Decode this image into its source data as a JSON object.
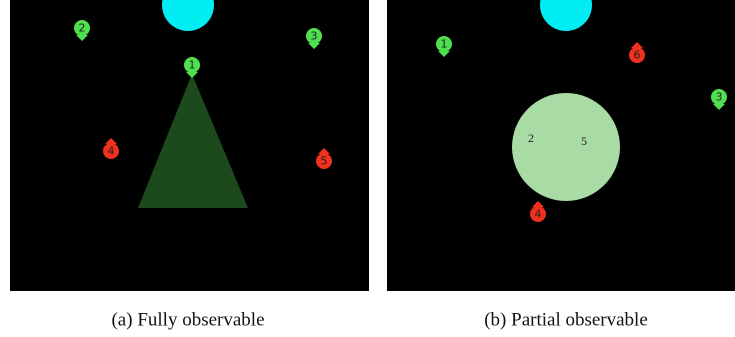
{
  "panels": [
    {
      "agents": [
        "1",
        "2",
        "3",
        "4",
        "5"
      ],
      "caption": "(a) Fully observable"
    },
    {
      "agents": [
        "1",
        "6",
        "3",
        "4"
      ],
      "observed": [
        "2",
        "5"
      ],
      "caption": "(b) Partial observable"
    }
  ]
}
